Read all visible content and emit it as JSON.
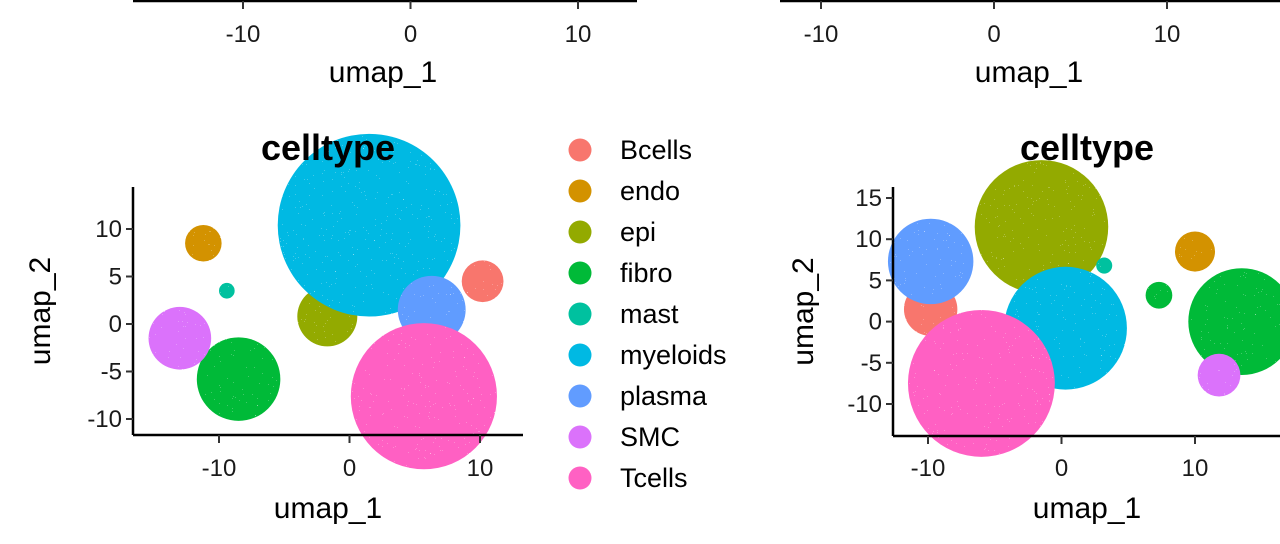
{
  "chart_data": [
    {
      "type": "scatter",
      "title": "",
      "xlabel": "umap_1",
      "ylabel": "",
      "x_ticks": [
        "-10",
        "0",
        "10"
      ],
      "xlim": [
        -17,
        17
      ],
      "partial": true
    },
    {
      "type": "scatter",
      "title": "",
      "xlabel": "umap_1",
      "ylabel": "",
      "x_ticks": [
        "-10",
        "0",
        "10"
      ],
      "xlim": [
        -12.8,
        20.4
      ],
      "partial": true
    },
    {
      "type": "scatter",
      "title": "celltype",
      "xlabel": "umap_1",
      "ylabel": "umap_2",
      "x_ticks": [
        "-10",
        "0",
        "10"
      ],
      "y_ticks": [
        "-10",
        "-5",
        "0",
        "5",
        "10"
      ],
      "xlim": [
        -16.8,
        13.5
      ],
      "ylim": [
        -11.8,
        14.2
      ],
      "grid": false,
      "legend_placement": "right",
      "series": [
        {
          "name": "Bcells",
          "clusters": [
            {
              "x": 10.2,
              "y": 4.5,
              "rx": 1.6,
              "ry": 2.5
            }
          ]
        },
        {
          "name": "endo",
          "clusters": [
            {
              "x": -11.2,
              "y": 8.5,
              "rx": 1.4,
              "ry": 1.0
            }
          ]
        },
        {
          "name": "epi",
          "clusters": [
            {
              "x": -1.7,
              "y": 0.8,
              "rx": 2.3,
              "ry": 3.3
            },
            {
              "x": -1.2,
              "y": 6.2,
              "rx": 1.0,
              "ry": 1.2
            }
          ]
        },
        {
          "name": "fibro",
          "clusters": [
            {
              "x": -8.5,
              "y": -5.8,
              "rx": 3.2,
              "ry": 3.8
            }
          ]
        },
        {
          "name": "mast",
          "clusters": [
            {
              "x": -9.4,
              "y": 3.5,
              "rx": 0.6,
              "ry": 0.7
            }
          ]
        },
        {
          "name": "myeloids",
          "clusters": [
            {
              "x": 1.5,
              "y": 10.4,
              "rx": 7.0,
              "ry": 2.3
            }
          ]
        },
        {
          "name": "plasma",
          "clusters": [
            {
              "x": 6.3,
              "y": 1.5,
              "rx": 2.6,
              "ry": 1.0
            }
          ]
        },
        {
          "name": "SMC",
          "clusters": [
            {
              "x": -13.0,
              "y": -1.5,
              "rx": 2.4,
              "ry": 1.1
            }
          ]
        },
        {
          "name": "Tcells",
          "clusters": [
            {
              "x": 5.7,
              "y": -7.6,
              "rx": 5.6,
              "ry": 2.6
            }
          ]
        }
      ]
    },
    {
      "type": "scatter",
      "title": "celltype",
      "xlabel": "umap_1",
      "ylabel": "umap_2",
      "x_ticks": [
        "-10",
        "0",
        "10"
      ],
      "y_ticks": [
        "-10",
        "-5",
        "0",
        "5",
        "10",
        "15"
      ],
      "xlim": [
        -12.8,
        20.4
      ],
      "ylim": [
        -14.0,
        16.5
      ],
      "grid": false,
      "series": [
        {
          "name": "Bcells",
          "clusters": [
            {
              "x": -9.8,
              "y": 1.5,
              "rx": 2.0,
              "ry": 1.8
            }
          ]
        },
        {
          "name": "endo",
          "clusters": [
            {
              "x": 10.0,
              "y": 8.5,
              "rx": 1.5,
              "ry": 1.5
            }
          ]
        },
        {
          "name": "epi",
          "clusters": [
            {
              "x": -1.5,
              "y": 11.5,
              "rx": 5.0,
              "ry": 2.2
            },
            {
              "x": -3.2,
              "y": 6.0,
              "rx": 0.8,
              "ry": 0.6
            }
          ]
        },
        {
          "name": "fibro",
          "clusters": [
            {
              "x": 13.5,
              "y": 0.0,
              "rx": 4.0,
              "ry": 3.6
            },
            {
              "x": 7.3,
              "y": 3.2,
              "rx": 1.0,
              "ry": 1.0
            }
          ]
        },
        {
          "name": "mast",
          "clusters": [
            {
              "x": 3.2,
              "y": 6.8,
              "rx": 0.6,
              "ry": 0.6
            }
          ]
        },
        {
          "name": "myeloids",
          "clusters": [
            {
              "x": 0.3,
              "y": -0.8,
              "rx": 4.6,
              "ry": 4.6
            }
          ]
        },
        {
          "name": "plasma",
          "clusters": [
            {
              "x": -9.8,
              "y": 7.3,
              "rx": 3.2,
              "ry": 1.4
            }
          ]
        },
        {
          "name": "SMC",
          "clusters": [
            {
              "x": 11.8,
              "y": -6.5,
              "rx": 1.6,
              "ry": 2.2
            }
          ]
        },
        {
          "name": "Tcells",
          "clusters": [
            {
              "x": -6.0,
              "y": -7.5,
              "rx": 5.5,
              "ry": 3.2
            }
          ]
        }
      ]
    }
  ],
  "legend": {
    "items": [
      {
        "label": "Bcells",
        "color": "#F8766D"
      },
      {
        "label": "endo",
        "color": "#D39200"
      },
      {
        "label": "epi",
        "color": "#93AA00"
      },
      {
        "label": "fibro",
        "color": "#00BA38"
      },
      {
        "label": "mast",
        "color": "#00C19F"
      },
      {
        "label": "myeloids",
        "color": "#00B9E3"
      },
      {
        "label": "plasma",
        "color": "#619CFF"
      },
      {
        "label": "SMC",
        "color": "#DB72FB"
      },
      {
        "label": "Tcells",
        "color": "#FF61C3"
      }
    ]
  }
}
